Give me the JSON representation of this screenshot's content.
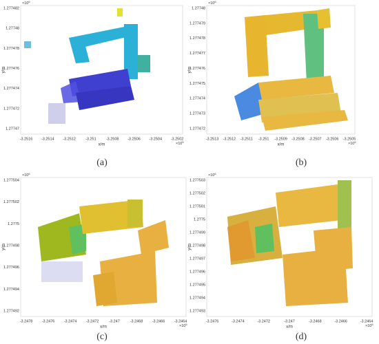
{
  "panels": [
    {
      "caption": "(a)",
      "x_label": "x/m",
      "y_label": "y/m",
      "y_exponent": {
        "base": "×10",
        "power": "6"
      },
      "x_exponent": {
        "base": "×10",
        "power": "5"
      },
      "y_ticks": [
        "1.277482",
        "1.27748",
        "1.277478",
        "1.277476",
        "1.277474",
        "1.277472",
        "1.27747"
      ],
      "x_ticks": [
        "-3.2516",
        "-3.2514",
        "-3.2512",
        "-3.251",
        "-3.2508",
        "-3.2506",
        "-3.2504",
        "-3.2502"
      ]
    },
    {
      "caption": "(b)",
      "x_label": "x/m",
      "y_label": "y/m",
      "y_exponent": {
        "base": "×10",
        "power": "6"
      },
      "x_exponent": {
        "base": "×10",
        "power": "5"
      },
      "y_ticks": [
        "1.27748",
        "1.277479",
        "1.277478",
        "1.277477",
        "1.277476",
        "1.277475",
        "1.277474",
        "1.277473",
        "1.277472"
      ],
      "x_ticks": [
        "-3.2513",
        "-3.2512",
        "-3.2511",
        "-3.251",
        "-3.2509",
        "-3.2508",
        "-3.2507",
        "-3.2506",
        "-3.2505"
      ]
    },
    {
      "caption": "(c)",
      "x_label": "x/m",
      "y_label": "y/m",
      "y_exponent": {
        "base": "×10",
        "power": "6"
      },
      "x_exponent": {
        "base": "×10",
        "power": "5"
      },
      "y_ticks": [
        "1.277504",
        "1.277502",
        "1.2775",
        "1.277498",
        "1.277496",
        "1.277494",
        "1.277492"
      ],
      "x_ticks": [
        "-3.2478",
        "-3.2476",
        "-3.2474",
        "-3.2472",
        "-3.247",
        "-3.2468",
        "-3.2466",
        "-3.2464"
      ]
    },
    {
      "caption": "(d)",
      "x_label": "x/m",
      "y_label": "y/m",
      "y_exponent": {
        "base": "×10",
        "power": "6"
      },
      "x_exponent": {
        "base": "×10",
        "power": "5"
      },
      "y_ticks": [
        "1.277503",
        "1.277502",
        "1.277501",
        "1.2775",
        "1.277499",
        "1.277498",
        "1.277497",
        "1.277496",
        "1.277495",
        "1.277494",
        "1.277493"
      ],
      "x_ticks": [
        "-3.2476",
        "-3.2474",
        "-3.2472",
        "-3.247",
        "-3.2468",
        "-3.2466",
        "-3.2464"
      ]
    }
  ]
}
